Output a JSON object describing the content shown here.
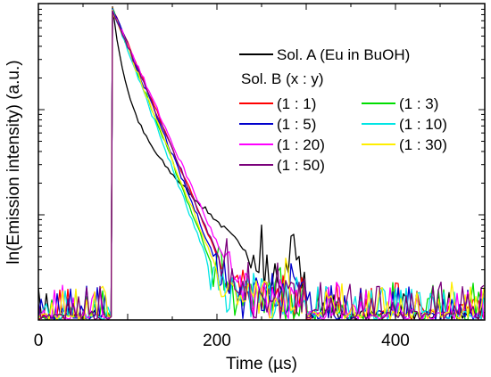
{
  "chart_data": {
    "type": "line",
    "title": "",
    "xlabel": "Time (µs)",
    "ylabel": "ln(Emission intensity) (a.u.)",
    "xlim": [
      0,
      500
    ],
    "ylim": [
      0,
      1
    ],
    "y_scale": "log",
    "x_ticks": [
      0,
      200,
      400
    ],
    "x_tick_labels": [
      "0",
      "200",
      "400"
    ],
    "y_tick_labels": [],
    "grid": false,
    "legend_position": "top-right",
    "legend_group_label": "Sol. B (x : y)",
    "x_peak": 83,
    "series": [
      {
        "name": "Sol. A (Eu in BuOH)",
        "color": "#000000",
        "decay": 0.3,
        "noise_floor": 0.1,
        "tail_end": 0.16
      },
      {
        "name": "(1 : 1)",
        "color": "#ff0000",
        "decay": 0.55,
        "noise_floor": 0.07,
        "tail_end": 0.07
      },
      {
        "name": "(1 : 3)",
        "color": "#00dd00",
        "decay": 0.6,
        "noise_floor": 0.06,
        "tail_end": 0.05
      },
      {
        "name": "(1 : 5)",
        "color": "#0000cc",
        "decay": 0.57,
        "noise_floor": 0.07,
        "tail_end": 0.06
      },
      {
        "name": "(1 : 10)",
        "color": "#00e5e5",
        "decay": 0.62,
        "noise_floor": 0.07,
        "tail_end": 0.06
      },
      {
        "name": "(1 : 20)",
        "color": "#ff00ff",
        "decay": 0.52,
        "noise_floor": 0.06,
        "tail_end": 0.04
      },
      {
        "name": "(1 : 30)",
        "color": "#ffee00",
        "decay": 0.58,
        "noise_floor": 0.06,
        "tail_end": 0.05
      },
      {
        "name": "(1 : 50)",
        "color": "#7a007a",
        "decay": 0.54,
        "noise_floor": 0.06,
        "tail_end": 0.04
      }
    ]
  }
}
